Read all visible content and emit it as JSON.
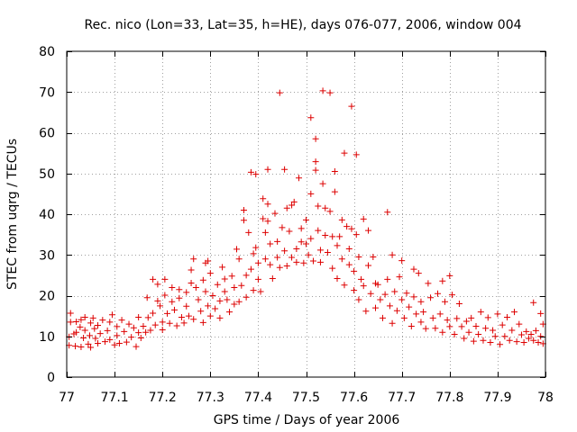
{
  "chart_data": {
    "type": "scatter",
    "title": "Rec. nico (Lon=33, Lat=35, h=HE), days 076-077, 2006, window 004",
    "xlabel": "GPS time / Days of year 2006",
    "ylabel": "STEC from uqrg / TECUs",
    "xlim": [
      77,
      78
    ],
    "ylim": [
      0,
      80
    ],
    "grid": true,
    "marker": "+",
    "color": "#dd0000",
    "xticks": [
      77,
      77.1,
      77.2,
      77.3,
      77.4,
      77.5,
      77.6,
      77.7,
      77.8,
      77.9,
      78
    ],
    "xtick_labels": [
      "77",
      "77.1",
      "77.2",
      "77.3",
      "77.4",
      "77.5",
      "77.6",
      "77.7",
      "77.8",
      "77.9",
      "78"
    ],
    "yticks": [
      0,
      10,
      20,
      30,
      40,
      50,
      60,
      70,
      80
    ],
    "ytick_labels": [
      "0",
      "10",
      "20",
      "30",
      "40",
      "50",
      "60",
      "70",
      "80"
    ],
    "series": [
      {
        "name": "STEC",
        "points": [
          [
            77.005,
            7.8
          ],
          [
            77.005,
            9.9
          ],
          [
            77.008,
            13.5
          ],
          [
            77.008,
            15.7
          ],
          [
            77.015,
            10.6
          ],
          [
            77.018,
            7.6
          ],
          [
            77.02,
            11.0
          ],
          [
            77.02,
            13.6
          ],
          [
            77.028,
            12.3
          ],
          [
            77.03,
            14.1
          ],
          [
            77.03,
            7.4
          ],
          [
            77.035,
            9.6
          ],
          [
            77.038,
            11.5
          ],
          [
            77.038,
            14.7
          ],
          [
            77.045,
            8.1
          ],
          [
            77.048,
            10.2
          ],
          [
            77.05,
            13.3
          ],
          [
            77.05,
            7.3
          ],
          [
            77.055,
            14.5
          ],
          [
            77.058,
            11.9
          ],
          [
            77.06,
            9.5
          ],
          [
            77.065,
            8.3
          ],
          [
            77.065,
            12.7
          ],
          [
            77.07,
            10.7
          ],
          [
            77.075,
            14.0
          ],
          [
            77.08,
            8.7
          ],
          [
            77.085,
            11.4
          ],
          [
            77.09,
            13.5
          ],
          [
            77.09,
            9.2
          ],
          [
            77.095,
            15.3
          ],
          [
            77.1,
            7.9
          ],
          [
            77.105,
            12.4
          ],
          [
            77.105,
            10.2
          ],
          [
            77.11,
            8.3
          ],
          [
            77.115,
            14.0
          ],
          [
            77.12,
            11.2
          ],
          [
            77.125,
            8.6
          ],
          [
            77.13,
            13.0
          ],
          [
            77.135,
            9.8
          ],
          [
            77.14,
            12.1
          ],
          [
            77.145,
            7.5
          ],
          [
            77.15,
            10.9
          ],
          [
            77.15,
            14.7
          ],
          [
            77.155,
            9.6
          ],
          [
            77.16,
            12.5
          ],
          [
            77.165,
            11.0
          ],
          [
            77.168,
            19.5
          ],
          [
            77.17,
            14.6
          ],
          [
            77.175,
            11.5
          ],
          [
            77.18,
            24.0
          ],
          [
            77.18,
            15.7
          ],
          [
            77.185,
            12.8
          ],
          [
            77.19,
            18.7
          ],
          [
            77.19,
            22.8
          ],
          [
            77.195,
            17.5
          ],
          [
            77.2,
            13.5
          ],
          [
            77.2,
            11.6
          ],
          [
            77.205,
            24.0
          ],
          [
            77.205,
            20.1
          ],
          [
            77.21,
            15.6
          ],
          [
            77.215,
            13.2
          ],
          [
            77.22,
            22.0
          ],
          [
            77.22,
            18.5
          ],
          [
            77.225,
            16.5
          ],
          [
            77.23,
            12.6
          ],
          [
            77.235,
            21.5
          ],
          [
            77.235,
            19.4
          ],
          [
            77.24,
            14.7
          ],
          [
            77.245,
            13.3
          ],
          [
            77.25,
            20.8
          ],
          [
            77.25,
            17.4
          ],
          [
            77.255,
            15.0
          ],
          [
            77.26,
            26.3
          ],
          [
            77.26,
            23.1
          ],
          [
            77.265,
            29.0
          ],
          [
            77.265,
            14.2
          ],
          [
            77.27,
            22.0
          ],
          [
            77.275,
            19.0
          ],
          [
            77.28,
            16.2
          ],
          [
            77.285,
            23.8
          ],
          [
            77.285,
            13.4
          ],
          [
            77.29,
            28.0
          ],
          [
            77.29,
            21.0
          ],
          [
            77.295,
            17.5
          ],
          [
            77.295,
            28.5
          ],
          [
            77.3,
            25.5
          ],
          [
            77.3,
            15.0
          ],
          [
            77.305,
            20.0
          ],
          [
            77.31,
            16.8
          ],
          [
            77.315,
            22.7
          ],
          [
            77.32,
            18.7
          ],
          [
            77.32,
            14.5
          ],
          [
            77.325,
            27.0
          ],
          [
            77.33,
            24.1
          ],
          [
            77.33,
            21.0
          ],
          [
            77.335,
            19.0
          ],
          [
            77.34,
            16.0
          ],
          [
            77.345,
            24.8
          ],
          [
            77.35,
            22.0
          ],
          [
            77.35,
            17.9
          ],
          [
            77.355,
            31.4
          ],
          [
            77.36,
            29.0
          ],
          [
            77.36,
            18.5
          ],
          [
            77.365,
            22.5
          ],
          [
            77.37,
            38.5
          ],
          [
            77.37,
            41.0
          ],
          [
            77.375,
            25.0
          ],
          [
            77.375,
            19.6
          ],
          [
            77.38,
            35.5
          ],
          [
            77.385,
            50.3
          ],
          [
            77.385,
            26.5
          ],
          [
            77.39,
            30.3
          ],
          [
            77.39,
            21.3
          ],
          [
            77.395,
            49.8
          ],
          [
            77.395,
            31.8
          ],
          [
            77.4,
            28.0
          ],
          [
            77.4,
            24.0
          ],
          [
            77.405,
            21.0
          ],
          [
            77.41,
            43.8
          ],
          [
            77.41,
            38.9
          ],
          [
            77.415,
            35.5
          ],
          [
            77.415,
            29.0
          ],
          [
            77.42,
            51.0
          ],
          [
            77.42,
            42.5
          ],
          [
            77.42,
            38.3
          ],
          [
            77.425,
            32.7
          ],
          [
            77.425,
            27.6
          ],
          [
            77.43,
            24.2
          ],
          [
            77.435,
            40.2
          ],
          [
            77.44,
            33.3
          ],
          [
            77.44,
            29.4
          ],
          [
            77.445,
            69.8
          ],
          [
            77.445,
            26.9
          ],
          [
            77.45,
            36.7
          ],
          [
            77.455,
            51.0
          ],
          [
            77.455,
            31.0
          ],
          [
            77.46,
            41.5
          ],
          [
            77.46,
            27.3
          ],
          [
            77.465,
            35.8
          ],
          [
            77.47,
            42.2
          ],
          [
            77.47,
            29.4
          ],
          [
            77.475,
            43.0
          ],
          [
            77.48,
            31.5
          ],
          [
            77.48,
            28.2
          ],
          [
            77.485,
            48.9
          ],
          [
            77.49,
            36.5
          ],
          [
            77.49,
            33.2
          ],
          [
            77.495,
            28.0
          ],
          [
            77.5,
            38.6
          ],
          [
            77.5,
            32.7
          ],
          [
            77.505,
            30.0
          ],
          [
            77.51,
            63.7
          ],
          [
            77.51,
            45.0
          ],
          [
            77.51,
            34.0
          ],
          [
            77.515,
            28.5
          ],
          [
            77.52,
            58.5
          ],
          [
            77.52,
            52.9
          ],
          [
            77.52,
            50.8
          ],
          [
            77.525,
            42.0
          ],
          [
            77.525,
            36.0
          ],
          [
            77.53,
            31.2
          ],
          [
            77.53,
            28.2
          ],
          [
            77.535,
            70.3
          ],
          [
            77.535,
            47.5
          ],
          [
            77.54,
            41.5
          ],
          [
            77.54,
            34.8
          ],
          [
            77.545,
            30.6
          ],
          [
            77.55,
            69.8
          ],
          [
            77.55,
            40.7
          ],
          [
            77.555,
            34.5
          ],
          [
            77.555,
            26.7
          ],
          [
            77.56,
            50.5
          ],
          [
            77.56,
            45.5
          ],
          [
            77.565,
            32.3
          ],
          [
            77.565,
            24.2
          ],
          [
            77.57,
            34.5
          ],
          [
            77.575,
            29.0
          ],
          [
            77.575,
            38.6
          ],
          [
            77.58,
            55.0
          ],
          [
            77.58,
            22.6
          ],
          [
            77.585,
            37.0
          ],
          [
            77.59,
            31.5
          ],
          [
            77.59,
            27.6
          ],
          [
            77.595,
            66.5
          ],
          [
            77.595,
            36.4
          ],
          [
            77.6,
            26.0
          ],
          [
            77.6,
            21.3
          ],
          [
            77.605,
            54.6
          ],
          [
            77.605,
            35.0
          ],
          [
            77.61,
            29.5
          ],
          [
            77.61,
            19.0
          ],
          [
            77.615,
            24.0
          ],
          [
            77.62,
            38.8
          ],
          [
            77.62,
            22.4
          ],
          [
            77.625,
            16.2
          ],
          [
            77.63,
            36.0
          ],
          [
            77.63,
            27.4
          ],
          [
            77.635,
            20.5
          ],
          [
            77.64,
            29.5
          ],
          [
            77.645,
            23.0
          ],
          [
            77.645,
            17.0
          ],
          [
            77.65,
            22.7
          ],
          [
            77.655,
            19.0
          ],
          [
            77.66,
            14.5
          ],
          [
            77.665,
            20.3
          ],
          [
            77.67,
            40.5
          ],
          [
            77.67,
            24.0
          ],
          [
            77.675,
            17.5
          ],
          [
            77.68,
            30.0
          ],
          [
            77.68,
            13.2
          ],
          [
            77.685,
            21.0
          ],
          [
            77.69,
            16.3
          ],
          [
            77.695,
            24.6
          ],
          [
            77.7,
            28.6
          ],
          [
            77.7,
            19.0
          ],
          [
            77.705,
            14.5
          ],
          [
            77.71,
            20.6
          ],
          [
            77.715,
            17.2
          ],
          [
            77.72,
            12.5
          ],
          [
            77.725,
            26.5
          ],
          [
            77.725,
            19.7
          ],
          [
            77.73,
            15.5
          ],
          [
            77.735,
            25.5
          ],
          [
            77.74,
            13.5
          ],
          [
            77.74,
            18.5
          ],
          [
            77.745,
            16.0
          ],
          [
            77.75,
            11.9
          ],
          [
            77.755,
            23.0
          ],
          [
            77.76,
            19.5
          ],
          [
            77.765,
            14.5
          ],
          [
            77.77,
            12.0
          ],
          [
            77.775,
            20.5
          ],
          [
            77.78,
            15.5
          ],
          [
            77.785,
            23.6
          ],
          [
            77.785,
            11.0
          ],
          [
            77.79,
            18.5
          ],
          [
            77.795,
            14.0
          ],
          [
            77.8,
            24.9
          ],
          [
            77.8,
            12.4
          ],
          [
            77.805,
            20.2
          ],
          [
            77.81,
            10.5
          ],
          [
            77.815,
            14.4
          ],
          [
            77.82,
            18.0
          ],
          [
            77.825,
            12.4
          ],
          [
            77.83,
            9.5
          ],
          [
            77.835,
            13.7
          ],
          [
            77.84,
            11.0
          ],
          [
            77.845,
            14.5
          ],
          [
            77.85,
            8.8
          ],
          [
            77.855,
            12.5
          ],
          [
            77.86,
            10.5
          ],
          [
            77.865,
            16.0
          ],
          [
            77.87,
            9.0
          ],
          [
            77.875,
            12.0
          ],
          [
            77.88,
            14.6
          ],
          [
            77.885,
            8.5
          ],
          [
            77.89,
            11.5
          ],
          [
            77.895,
            10.0
          ],
          [
            77.9,
            15.5
          ],
          [
            77.905,
            8.0
          ],
          [
            77.91,
            12.8
          ],
          [
            77.915,
            10.0
          ],
          [
            77.92,
            14.7
          ],
          [
            77.925,
            9.0
          ],
          [
            77.93,
            11.5
          ],
          [
            77.935,
            16.0
          ],
          [
            77.94,
            8.7
          ],
          [
            77.945,
            13.0
          ],
          [
            77.95,
            10.4
          ],
          [
            77.955,
            8.5
          ],
          [
            77.96,
            11.2
          ],
          [
            77.965,
            9.5
          ],
          [
            77.97,
            10.5
          ],
          [
            77.975,
            18.3
          ],
          [
            77.975,
            9.0
          ],
          [
            77.98,
            11.4
          ],
          [
            77.985,
            8.5
          ],
          [
            77.99,
            15.6
          ],
          [
            77.99,
            10.0
          ],
          [
            77.995,
            13.0
          ],
          [
            77.995,
            8.2
          ]
        ]
      }
    ]
  }
}
